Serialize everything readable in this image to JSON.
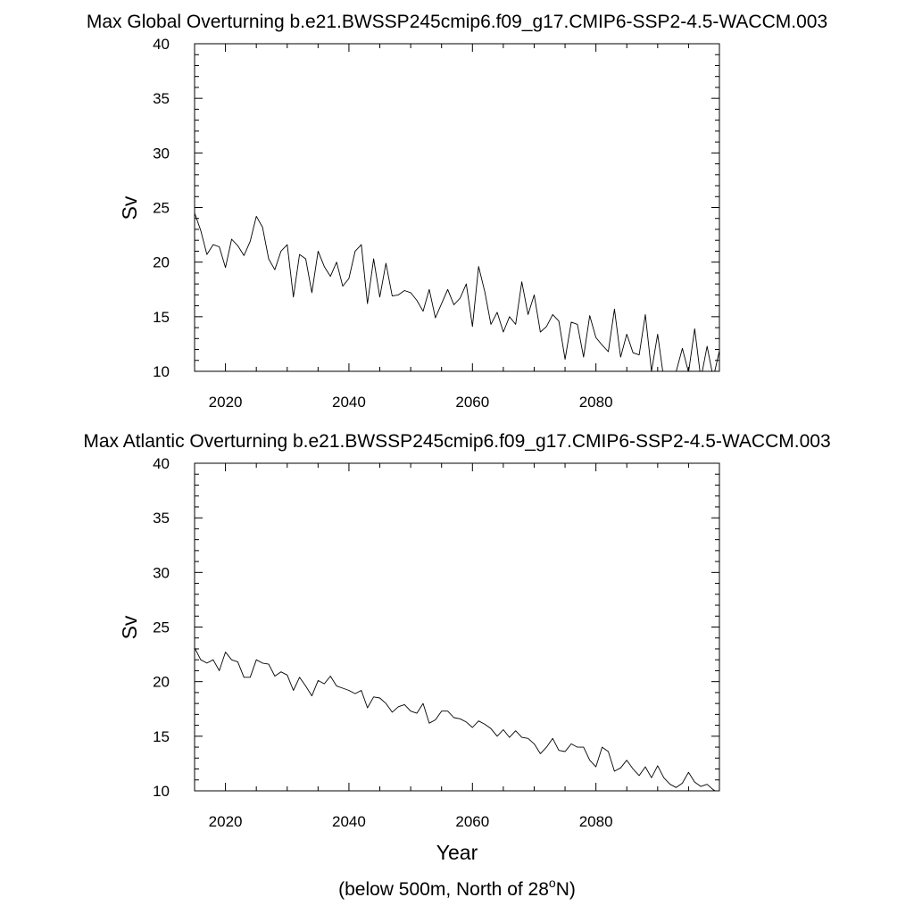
{
  "chart_data": [
    {
      "type": "line",
      "title": "Max Global Overturning b.e21.BWSSP245cmip6.f09_g17.CMIP6-SSP2-4.5-WACCM.003",
      "xlabel": "",
      "ylabel": "Sv",
      "xlim": [
        2015,
        2100
      ],
      "ylim": [
        10,
        40
      ],
      "xticks": [
        2020,
        2040,
        2060,
        2080
      ],
      "xtick_labels": [
        "2020",
        "2040",
        "2060",
        "2080"
      ],
      "yticks": [
        10,
        15,
        20,
        25,
        30,
        35,
        40
      ],
      "ytick_labels": [
        "10",
        "15",
        "20",
        "25",
        "30",
        "35",
        "40"
      ],
      "grid": false,
      "line_color": "#000000",
      "x": [
        2015,
        2016,
        2017,
        2018,
        2019,
        2020,
        2021,
        2022,
        2023,
        2024,
        2025,
        2026,
        2027,
        2028,
        2029,
        2030,
        2031,
        2032,
        2033,
        2034,
        2035,
        2036,
        2037,
        2038,
        2039,
        2040,
        2041,
        2042,
        2043,
        2044,
        2045,
        2046,
        2047,
        2048,
        2049,
        2050,
        2051,
        2052,
        2053,
        2054,
        2055,
        2056,
        2057,
        2058,
        2059,
        2060,
        2061,
        2062,
        2063,
        2064,
        2065,
        2066,
        2067,
        2068,
        2069,
        2070,
        2071,
        2072,
        2073,
        2074,
        2075,
        2076,
        2077,
        2078,
        2079,
        2080,
        2081,
        2082,
        2083,
        2084,
        2085,
        2086,
        2087,
        2088,
        2089,
        2090,
        2091,
        2092,
        2093,
        2094,
        2095,
        2096,
        2097,
        2098,
        2099,
        2100
      ],
      "y": [
        24.5,
        22.9,
        20.7,
        21.6,
        21.4,
        19.5,
        22.1,
        21.5,
        20.6,
        21.9,
        24.2,
        23.2,
        20.3,
        19.3,
        21.0,
        21.6,
        16.8,
        20.7,
        20.3,
        17.2,
        21.0,
        19.6,
        18.7,
        20.0,
        17.8,
        18.5,
        21.0,
        21.6,
        16.2,
        20.3,
        16.8,
        19.9,
        16.9,
        17.0,
        17.4,
        17.2,
        16.5,
        15.5,
        17.5,
        14.9,
        16.2,
        17.5,
        16.1,
        16.7,
        18.0,
        14.1,
        19.6,
        17.3,
        14.3,
        15.4,
        13.6,
        15.0,
        14.3,
        18.2,
        15.2,
        17.0,
        13.6,
        14.1,
        15.2,
        14.6,
        11.1,
        14.5,
        14.3,
        11.3,
        15.1,
        13.1,
        12.4,
        11.8,
        15.7,
        11.3,
        13.4,
        11.7,
        11.5,
        15.2,
        10.0,
        13.4,
        9.3,
        9.4,
        10.0,
        12.1,
        9.9,
        13.9,
        9.3,
        12.3,
        9.4,
        11.9
      ]
    },
    {
      "type": "line",
      "title": "Max Atlantic Overturning b.e21.BWSSP245cmip6.f09_g17.CMIP6-SSP2-4.5-WACCM.003",
      "xlabel": "Year",
      "ylabel": "Sv",
      "annotation": "(below 500m, North of 28°N)",
      "xlim": [
        2015,
        2100
      ],
      "ylim": [
        10,
        40
      ],
      "xticks": [
        2020,
        2040,
        2060,
        2080
      ],
      "xtick_labels": [
        "2020",
        "2040",
        "2060",
        "2080"
      ],
      "yticks": [
        10,
        15,
        20,
        25,
        30,
        35,
        40
      ],
      "ytick_labels": [
        "10",
        "15",
        "20",
        "25",
        "30",
        "35",
        "40"
      ],
      "grid": false,
      "line_color": "#000000",
      "x": [
        2015,
        2016,
        2017,
        2018,
        2019,
        2020,
        2021,
        2022,
        2023,
        2024,
        2025,
        2026,
        2027,
        2028,
        2029,
        2030,
        2031,
        2032,
        2033,
        2034,
        2035,
        2036,
        2037,
        2038,
        2039,
        2040,
        2041,
        2042,
        2043,
        2044,
        2045,
        2046,
        2047,
        2048,
        2049,
        2050,
        2051,
        2052,
        2053,
        2054,
        2055,
        2056,
        2057,
        2058,
        2059,
        2060,
        2061,
        2062,
        2063,
        2064,
        2065,
        2066,
        2067,
        2068,
        2069,
        2070,
        2071,
        2072,
        2073,
        2074,
        2075,
        2076,
        2077,
        2078,
        2079,
        2080,
        2081,
        2082,
        2083,
        2084,
        2085,
        2086,
        2087,
        2088,
        2089,
        2090,
        2091,
        2092,
        2093,
        2094,
        2095,
        2096,
        2097,
        2098,
        2099,
        2100
      ],
      "y": [
        23.1,
        22.0,
        21.7,
        22.0,
        21.0,
        22.7,
        22.0,
        21.8,
        20.4,
        20.4,
        22.0,
        21.7,
        21.6,
        20.5,
        20.9,
        20.6,
        19.2,
        20.4,
        19.6,
        18.7,
        20.1,
        19.8,
        20.5,
        19.6,
        19.4,
        19.2,
        18.9,
        19.2,
        17.6,
        18.6,
        18.5,
        18.0,
        17.2,
        17.7,
        17.9,
        17.3,
        17.1,
        18.0,
        16.2,
        16.5,
        17.3,
        17.3,
        16.7,
        16.6,
        16.3,
        15.8,
        16.4,
        16.1,
        15.7,
        15.0,
        15.6,
        14.9,
        15.5,
        14.9,
        14.8,
        14.3,
        13.4,
        14.0,
        14.8,
        13.7,
        13.6,
        14.3,
        14.0,
        14.0,
        12.8,
        12.2,
        14.0,
        13.6,
        11.8,
        12.1,
        12.8,
        12.0,
        11.4,
        12.2,
        11.2,
        12.3,
        11.2,
        10.6,
        10.3,
        10.7,
        11.7,
        10.8,
        10.4,
        10.6,
        10.1,
        9.8
      ]
    }
  ]
}
